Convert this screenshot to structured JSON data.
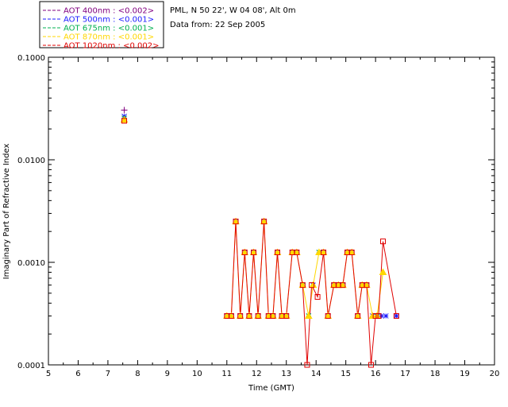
{
  "info": {
    "site": "PML, N 50 22', W 04 08', Alt 0m",
    "date": "Data from: 22 Sep 2005"
  },
  "chart_data": {
    "type": "scatter",
    "title": "",
    "xlabel": "Time (GMT)",
    "ylabel": "Imaginary Part of Refractive Index",
    "xlim": [
      5,
      20
    ],
    "ylim": [
      0.0001,
      0.1
    ],
    "yscale": "log",
    "xticks": [
      "5",
      "6",
      "7",
      "8",
      "9",
      "10",
      "11",
      "12",
      "13",
      "14",
      "15",
      "16",
      "17",
      "18",
      "19",
      "20"
    ],
    "yticks": [
      "0.0001",
      "0.0010",
      "0.0100",
      "0.1000"
    ],
    "legend_position": "top-left",
    "series": [
      {
        "name": "AOT  400nm : <0.002>",
        "color": "#800080",
        "marker": "plus",
        "line": false,
        "points": [
          [
            7.55,
            0.0305
          ]
        ]
      },
      {
        "name": "AOT  500nm : <0.001>",
        "color": "#1a1aff",
        "marker": "star",
        "line": false,
        "points": [
          [
            7.55,
            0.0265
          ],
          [
            11.0,
            0.0003
          ],
          [
            11.15,
            0.0003
          ],
          [
            11.3,
            0.0025
          ],
          [
            11.45,
            0.0003
          ],
          [
            11.6,
            0.00125
          ],
          [
            11.75,
            0.0003
          ],
          [
            11.9,
            0.00125
          ],
          [
            12.05,
            0.0003
          ],
          [
            12.25,
            0.0025
          ],
          [
            12.4,
            0.0003
          ],
          [
            12.55,
            0.0003
          ],
          [
            12.7,
            0.00125
          ],
          [
            12.85,
            0.0003
          ],
          [
            13.0,
            0.0003
          ],
          [
            13.2,
            0.00125
          ],
          [
            13.35,
            0.00125
          ],
          [
            13.55,
            0.0006
          ],
          [
            13.75,
            0.0003
          ],
          [
            13.9,
            0.0006
          ],
          [
            14.1,
            0.00125
          ],
          [
            14.25,
            0.00125
          ],
          [
            14.4,
            0.0003
          ],
          [
            14.6,
            0.0006
          ],
          [
            14.75,
            0.0006
          ],
          [
            14.9,
            0.0006
          ],
          [
            15.05,
            0.00125
          ],
          [
            15.2,
            0.00125
          ],
          [
            15.4,
            0.0003
          ],
          [
            15.55,
            0.0006
          ],
          [
            15.7,
            0.0006
          ],
          [
            15.9,
            0.0003
          ],
          [
            16.05,
            0.0003
          ],
          [
            16.2,
            0.0003
          ],
          [
            16.35,
            0.0003
          ],
          [
            16.7,
            0.0003
          ]
        ]
      },
      {
        "name": "AOT  675nm : <0.001>",
        "color": "#00b050",
        "marker": "star",
        "line": false,
        "points": [
          [
            7.55,
            0.0255
          ],
          [
            13.55,
            0.0006
          ],
          [
            13.75,
            0.0003
          ],
          [
            14.1,
            0.00125
          ],
          [
            16.05,
            0.0003
          ]
        ]
      },
      {
        "name": "AOT  870nm : <0.001>",
        "color": "#ffd700",
        "marker": "triangle",
        "line": true,
        "points": [
          [
            7.55,
            0.0245
          ],
          [
            11.0,
            0.0003
          ],
          [
            11.15,
            0.0003
          ],
          [
            11.3,
            0.0025
          ],
          [
            11.45,
            0.0003
          ],
          [
            11.6,
            0.00125
          ],
          [
            11.75,
            0.0003
          ],
          [
            11.9,
            0.00125
          ],
          [
            12.05,
            0.0003
          ],
          [
            12.25,
            0.0025
          ],
          [
            12.4,
            0.0003
          ],
          [
            12.55,
            0.0003
          ],
          [
            12.7,
            0.00125
          ],
          [
            12.85,
            0.0003
          ],
          [
            13.0,
            0.0003
          ],
          [
            13.2,
            0.00125
          ],
          [
            13.35,
            0.00125
          ],
          [
            13.55,
            0.0006
          ],
          [
            13.75,
            0.0003
          ],
          [
            13.9,
            0.0006
          ],
          [
            14.1,
            0.00125
          ],
          [
            14.25,
            0.00125
          ],
          [
            14.4,
            0.0003
          ],
          [
            14.6,
            0.0006
          ],
          [
            14.75,
            0.0006
          ],
          [
            14.9,
            0.0006
          ],
          [
            15.05,
            0.00125
          ],
          [
            15.2,
            0.00125
          ],
          [
            15.4,
            0.0003
          ],
          [
            15.55,
            0.0006
          ],
          [
            15.7,
            0.0006
          ],
          [
            15.9,
            0.0003
          ],
          [
            16.05,
            0.0003
          ],
          [
            16.25,
            0.0008
          ]
        ]
      },
      {
        "name": "AOT 1020nm : <0.002>",
        "color": "#e00000",
        "marker": "square",
        "line": true,
        "points": [
          [
            7.55,
            0.024
          ],
          [
            11.0,
            0.0003
          ],
          [
            11.15,
            0.0003
          ],
          [
            11.3,
            0.0025
          ],
          [
            11.45,
            0.0003
          ],
          [
            11.6,
            0.00125
          ],
          [
            11.75,
            0.0003
          ],
          [
            11.9,
            0.00125
          ],
          [
            12.05,
            0.0003
          ],
          [
            12.25,
            0.0025
          ],
          [
            12.4,
            0.0003
          ],
          [
            12.55,
            0.0003
          ],
          [
            12.7,
            0.00125
          ],
          [
            12.85,
            0.0003
          ],
          [
            13.0,
            0.0003
          ],
          [
            13.2,
            0.00125
          ],
          [
            13.35,
            0.00125
          ],
          [
            13.55,
            0.0006
          ],
          [
            13.7,
            0.0001
          ],
          [
            13.85,
            0.0006
          ],
          [
            14.05,
            0.00046
          ],
          [
            14.25,
            0.00125
          ],
          [
            14.4,
            0.0003
          ],
          [
            14.6,
            0.0006
          ],
          [
            14.75,
            0.0006
          ],
          [
            14.9,
            0.0006
          ],
          [
            15.05,
            0.00125
          ],
          [
            15.2,
            0.00125
          ],
          [
            15.4,
            0.0003
          ],
          [
            15.55,
            0.0006
          ],
          [
            15.7,
            0.0006
          ],
          [
            15.85,
            0.0001
          ],
          [
            16.0,
            0.0003
          ],
          [
            16.1,
            0.0003
          ],
          [
            16.25,
            0.0016
          ],
          [
            16.7,
            0.0003
          ]
        ]
      }
    ]
  }
}
